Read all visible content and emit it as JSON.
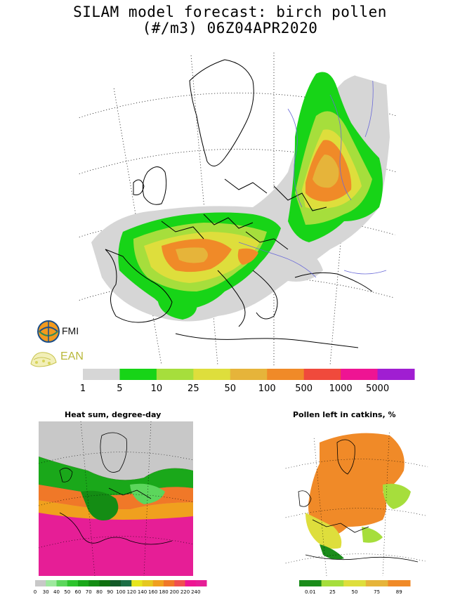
{
  "title": {
    "line1": "SILAM model forecast: birch pollen",
    "line2": "(#/m3) 06Z04APR2020"
  },
  "logos": {
    "fmi_label": "FMI",
    "ean_label": "EAN"
  },
  "main_legend": {
    "labels": [
      "1",
      "5",
      "10",
      "25",
      "50",
      "100",
      "500",
      "1000",
      "5000"
    ],
    "colors": [
      "#d6d6d6",
      "#17d417",
      "#a6de3c",
      "#dede3c",
      "#e6b43a",
      "#f08a28",
      "#f04a3c",
      "#ee1493",
      "#a01ed2"
    ]
  },
  "heat_sum": {
    "title": "Heat sum, degree-day",
    "labels": [
      "0",
      "30",
      "40",
      "50",
      "60",
      "70",
      "80",
      "90",
      "100",
      "120",
      "140",
      "160",
      "180",
      "200",
      "220",
      "240"
    ],
    "colors": [
      "#c8c8c8",
      "#9ee89e",
      "#5cd65c",
      "#2ec42e",
      "#1aa81a",
      "#148c14",
      "#0f700f",
      "#125a28",
      "#1c6e46",
      "#e6e61e",
      "#e6c81e",
      "#f0a01e",
      "#f07828",
      "#f05050",
      "#ee1493",
      "#e61e96"
    ]
  },
  "catkins": {
    "title": "Pollen left in catkins, %",
    "labels": [
      "0.01",
      "25",
      "50",
      "75",
      "89"
    ],
    "colors": [
      "#1a8c1a",
      "#a6de3c",
      "#dede3c",
      "#e6b43a",
      "#f08a28"
    ]
  }
}
